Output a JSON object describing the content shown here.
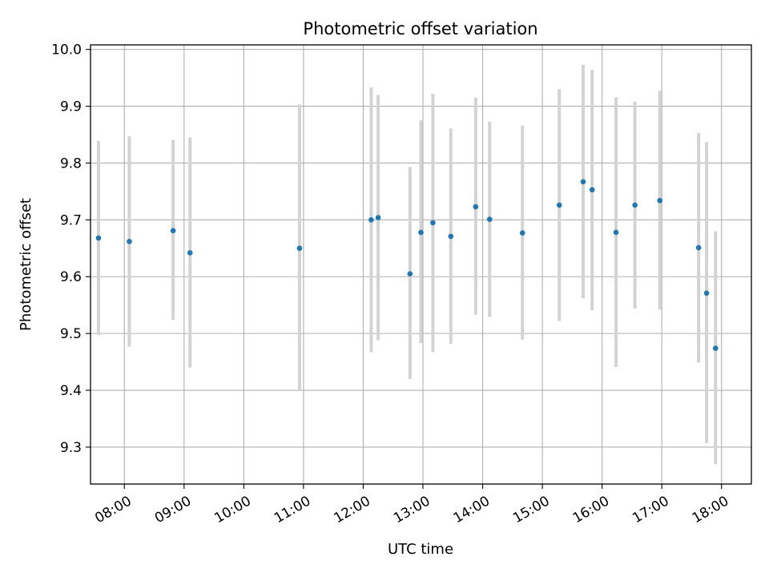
{
  "chart_data": {
    "type": "scatter",
    "title": "Photometric offset variation",
    "xlabel": "UTC time",
    "ylabel": "Photometric offset",
    "xlim": [
      "07:26",
      "18:30"
    ],
    "ylim": [
      9.235,
      10.008
    ],
    "grid": true,
    "x_ticks": [
      "08:00",
      "09:00",
      "10:00",
      "11:00",
      "12:00",
      "13:00",
      "14:00",
      "15:00",
      "16:00",
      "17:00",
      "18:00"
    ],
    "y_ticks": [
      9.3,
      9.4,
      9.5,
      9.6,
      9.7,
      9.8,
      9.9,
      10.0
    ],
    "y_tick_labels": [
      "9.3",
      "9.4",
      "9.5",
      "9.6",
      "9.7",
      "9.8",
      "9.9",
      "10.0"
    ],
    "point_color": "#1f77b4",
    "errorbar_color": "#d3d3d3",
    "points": [
      {
        "x": "07:34",
        "y": 9.668,
        "ymin": 9.497,
        "ymax": 9.839
      },
      {
        "x": "08:05",
        "y": 9.662,
        "ymin": 9.477,
        "ymax": 9.847
      },
      {
        "x": "08:49",
        "y": 9.681,
        "ymin": 9.524,
        "ymax": 9.841
      },
      {
        "x": "09:06",
        "y": 9.642,
        "ymin": 9.44,
        "ymax": 9.845
      },
      {
        "x": "10:56",
        "y": 9.65,
        "ymin": 9.4,
        "ymax": 9.903
      },
      {
        "x": "12:08",
        "y": 9.7,
        "ymin": 9.467,
        "ymax": 9.933
      },
      {
        "x": "12:15",
        "y": 9.704,
        "ymin": 9.488,
        "ymax": 9.92
      },
      {
        "x": "12:47",
        "y": 9.605,
        "ymin": 9.42,
        "ymax": 9.793
      },
      {
        "x": "12:58",
        "y": 9.678,
        "ymin": 9.483,
        "ymax": 9.875
      },
      {
        "x": "13:10",
        "y": 9.695,
        "ymin": 9.467,
        "ymax": 9.922
      },
      {
        "x": "13:28",
        "y": 9.671,
        "ymin": 9.482,
        "ymax": 9.861
      },
      {
        "x": "13:53",
        "y": 9.723,
        "ymin": 9.533,
        "ymax": 9.915
      },
      {
        "x": "14:07",
        "y": 9.701,
        "ymin": 9.529,
        "ymax": 9.873
      },
      {
        "x": "14:40",
        "y": 9.677,
        "ymin": 9.489,
        "ymax": 9.866
      },
      {
        "x": "15:17",
        "y": 9.726,
        "ymin": 9.522,
        "ymax": 9.93
      },
      {
        "x": "15:41",
        "y": 9.767,
        "ymin": 9.562,
        "ymax": 9.973
      },
      {
        "x": "15:50",
        "y": 9.753,
        "ymin": 9.541,
        "ymax": 9.964
      },
      {
        "x": "16:14",
        "y": 9.678,
        "ymin": 9.441,
        "ymax": 9.916
      },
      {
        "x": "16:33",
        "y": 9.726,
        "ymin": 9.544,
        "ymax": 9.908
      },
      {
        "x": "16:58",
        "y": 9.734,
        "ymin": 9.542,
        "ymax": 9.927
      },
      {
        "x": "17:37",
        "y": 9.651,
        "ymin": 9.449,
        "ymax": 9.853
      },
      {
        "x": "17:45",
        "y": 9.571,
        "ymin": 9.307,
        "ymax": 9.837
      },
      {
        "x": "17:54",
        "y": 9.474,
        "ymin": 9.27,
        "ymax": 9.68
      }
    ]
  }
}
